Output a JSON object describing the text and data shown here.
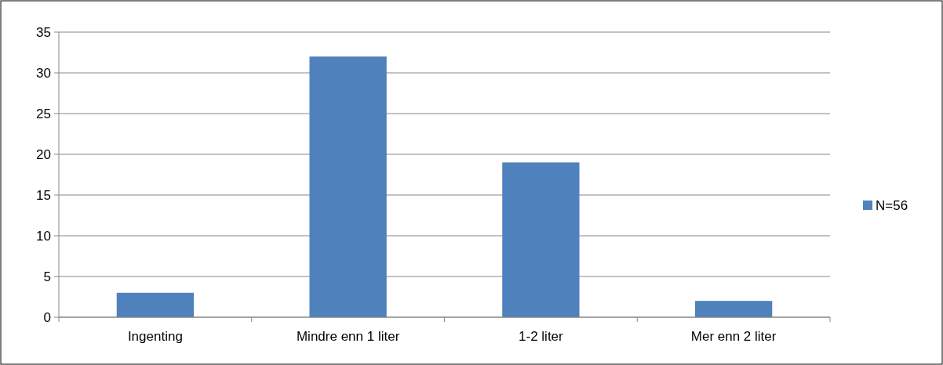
{
  "chart_data": {
    "type": "bar",
    "categories": [
      "Ingenting",
      "Mindre enn 1 liter",
      "1-2 liter",
      "Mer enn 2 liter"
    ],
    "series": [
      {
        "name": "N=56",
        "color": "#4f81bd",
        "values": [
          3,
          32,
          19,
          2
        ]
      }
    ],
    "ylim": [
      0,
      35
    ],
    "yticks": [
      0,
      5,
      10,
      15,
      20,
      25,
      30,
      35
    ],
    "grid": "y",
    "legend": "right"
  }
}
